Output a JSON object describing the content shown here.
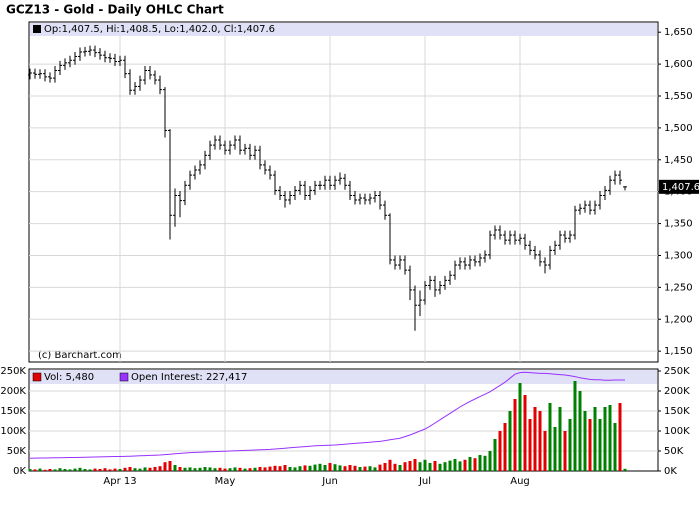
{
  "chart_data": {
    "type": "ohlc",
    "title": "GCZ13 - Gold - Daily OHLC Chart",
    "header_text": "Op:1,407.5, Hi:1,408.5, Lo:1,402.0, Cl:1,407.6",
    "watermark": "(c) Barchart.com",
    "last_label": "1,407.6",
    "grid": true,
    "color": "#000000",
    "categories": [
      null,
      null,
      null,
      null,
      null,
      null,
      null,
      null,
      null,
      null,
      null,
      null,
      null,
      null,
      null,
      null,
      null,
      null,
      "Apr 13",
      null,
      null,
      null,
      null,
      null,
      null,
      null,
      null,
      null,
      null,
      null,
      null,
      null,
      null,
      null,
      null,
      null,
      null,
      null,
      null,
      "May",
      null,
      null,
      null,
      null,
      null,
      null,
      null,
      null,
      null,
      null,
      null,
      null,
      null,
      null,
      null,
      null,
      null,
      null,
      null,
      null,
      "Jun",
      null,
      null,
      null,
      null,
      null,
      null,
      null,
      null,
      null,
      null,
      null,
      null,
      null,
      null,
      null,
      null,
      null,
      null,
      "Jul",
      null,
      null,
      null,
      null,
      null,
      null,
      null,
      null,
      null,
      null,
      null,
      null,
      null,
      null,
      null,
      null,
      null,
      null,
      "Aug",
      null,
      null,
      null,
      null,
      null,
      null,
      null,
      null,
      null,
      null,
      null,
      null,
      null,
      null,
      null,
      null,
      null,
      null,
      null,
      null,
      null
    ],
    "open": [
      1583,
      1586,
      1584,
      1585,
      1580,
      1578,
      1590,
      1598,
      1602,
      1606,
      1612,
      1619,
      1620,
      1622,
      1618,
      1614,
      1610,
      1609,
      1604,
      1606,
      1585,
      1559,
      1565,
      1575,
      1590,
      1583,
      1575,
      1560,
      1496,
      1363,
      1394,
      1386,
      1410,
      1426,
      1434,
      1442,
      1457,
      1473,
      1481,
      1473,
      1465,
      1473,
      1481,
      1465,
      1468,
      1457,
      1465,
      1442,
      1434,
      1426,
      1402,
      1394,
      1387,
      1394,
      1402,
      1410,
      1394,
      1402,
      1410,
      1410,
      1418,
      1410,
      1418,
      1421,
      1410,
      1394,
      1387,
      1390,
      1387,
      1390,
      1394,
      1379,
      1363,
      1293,
      1285,
      1293,
      1277,
      1246,
      1222,
      1230,
      1253,
      1261,
      1246,
      1253,
      1261,
      1269,
      1285,
      1290,
      1285,
      1293,
      1290,
      1296,
      1301,
      1332,
      1340,
      1332,
      1324,
      1332,
      1324,
      1327,
      1316,
      1308,
      1301,
      1290,
      1285,
      1308,
      1316,
      1332,
      1327,
      1332,
      1371,
      1374,
      1379,
      1371,
      1379,
      1394,
      1402,
      1418,
      1426,
      1407.5
    ],
    "high": [
      1593,
      1593,
      1592,
      1592,
      1587,
      1597,
      1605,
      1609,
      1613,
      1619,
      1626,
      1627,
      1629,
      1629,
      1625,
      1621,
      1617,
      1616,
      1613,
      1613,
      1592,
      1572,
      1582,
      1597,
      1597,
      1590,
      1582,
      1564,
      1498,
      1405,
      1401,
      1417,
      1433,
      1441,
      1449,
      1464,
      1480,
      1488,
      1488,
      1480,
      1480,
      1488,
      1488,
      1475,
      1475,
      1472,
      1472,
      1449,
      1441,
      1433,
      1409,
      1401,
      1401,
      1409,
      1417,
      1417,
      1409,
      1417,
      1417,
      1425,
      1425,
      1425,
      1430,
      1428,
      1417,
      1401,
      1397,
      1397,
      1397,
      1401,
      1401,
      1386,
      1366,
      1300,
      1300,
      1300,
      1284,
      1253,
      1245,
      1260,
      1268,
      1268,
      1260,
      1268,
      1276,
      1292,
      1297,
      1297,
      1300,
      1300,
      1303,
      1308,
      1339,
      1347,
      1347,
      1339,
      1339,
      1339,
      1334,
      1334,
      1323,
      1315,
      1308,
      1297,
      1315,
      1323,
      1339,
      1339,
      1339,
      1378,
      1381,
      1386,
      1386,
      1386,
      1401,
      1409,
      1425,
      1433,
      1433,
      1408.5
    ],
    "low": [
      1576,
      1577,
      1577,
      1573,
      1571,
      1571,
      1583,
      1591,
      1595,
      1599,
      1605,
      1612,
      1613,
      1611,
      1607,
      1603,
      1602,
      1597,
      1597,
      1578,
      1552,
      1552,
      1558,
      1568,
      1576,
      1568,
      1553,
      1485,
      1325,
      1345,
      1360,
      1379,
      1403,
      1419,
      1427,
      1435,
      1450,
      1466,
      1466,
      1458,
      1458,
      1466,
      1458,
      1458,
      1450,
      1450,
      1435,
      1427,
      1419,
      1395,
      1387,
      1375,
      1380,
      1387,
      1395,
      1387,
      1387,
      1395,
      1403,
      1403,
      1403,
      1403,
      1411,
      1403,
      1387,
      1380,
      1380,
      1380,
      1380,
      1383,
      1372,
      1356,
      1286,
      1278,
      1278,
      1270,
      1230,
      1182,
      1205,
      1223,
      1246,
      1235,
      1239,
      1246,
      1254,
      1262,
      1278,
      1278,
      1278,
      1283,
      1283,
      1289,
      1294,
      1325,
      1325,
      1317,
      1317,
      1317,
      1317,
      1309,
      1301,
      1294,
      1283,
      1272,
      1278,
      1301,
      1309,
      1320,
      1320,
      1325,
      1364,
      1367,
      1364,
      1364,
      1372,
      1387,
      1395,
      1411,
      1411,
      1402.0
    ],
    "close": [
      1586,
      1584,
      1585,
      1580,
      1578,
      1590,
      1598,
      1602,
      1606,
      1612,
      1619,
      1620,
      1622,
      1618,
      1614,
      1610,
      1609,
      1604,
      1606,
      1585,
      1559,
      1565,
      1575,
      1590,
      1583,
      1575,
      1560,
      1496,
      1363,
      1394,
      1386,
      1410,
      1426,
      1434,
      1442,
      1457,
      1473,
      1481,
      1473,
      1465,
      1473,
      1481,
      1465,
      1468,
      1457,
      1465,
      1442,
      1434,
      1426,
      1402,
      1394,
      1387,
      1394,
      1402,
      1410,
      1394,
      1402,
      1410,
      1410,
      1418,
      1410,
      1418,
      1421,
      1410,
      1394,
      1387,
      1390,
      1387,
      1390,
      1394,
      1379,
      1363,
      1293,
      1285,
      1293,
      1277,
      1246,
      1222,
      1230,
      1253,
      1261,
      1246,
      1253,
      1261,
      1269,
      1285,
      1290,
      1285,
      1293,
      1290,
      1296,
      1301,
      1332,
      1340,
      1332,
      1324,
      1332,
      1324,
      1327,
      1316,
      1308,
      1301,
      1290,
      1285,
      1308,
      1316,
      1332,
      1327,
      1332,
      1371,
      1374,
      1379,
      1371,
      1379,
      1394,
      1402,
      1418,
      1426,
      1418,
      1407.6
    ],
    "ylim": [
      1133,
      1666
    ],
    "yticks": [
      {
        "value": 1150,
        "label": "1,150"
      },
      {
        "value": 1200,
        "label": "1,200"
      },
      {
        "value": 1250,
        "label": "1,250"
      },
      {
        "value": 1300,
        "label": "1,300"
      },
      {
        "value": 1350,
        "label": "1,350"
      },
      {
        "value": 1400,
        "label": "1,400"
      },
      {
        "value": 1450,
        "label": "1,450"
      },
      {
        "value": 1500,
        "label": "1,500"
      },
      {
        "value": 1550,
        "label": "1,550"
      },
      {
        "value": 1600,
        "label": "1,600"
      },
      {
        "value": 1650,
        "label": "1,650"
      }
    ],
    "volume": {
      "type": "bar",
      "legend_text": "Vol: 5,480",
      "up_color": "#008000",
      "down_color": "#e00000",
      "values": [
        5000,
        4000,
        6000,
        3000,
        5000,
        4000,
        7000,
        5000,
        4000,
        6000,
        8000,
        5000,
        4000,
        6000,
        5000,
        7000,
        4000,
        6000,
        5000,
        8000,
        10000,
        7000,
        6000,
        9000,
        8000,
        10000,
        12000,
        22000,
        25000,
        15000,
        10000,
        8000,
        9000,
        7000,
        8000,
        10000,
        9000,
        7000,
        8000,
        6000,
        7000,
        9000,
        8000,
        6000,
        7000,
        8000,
        10000,
        9000,
        11000,
        13000,
        12000,
        15000,
        10000,
        9000,
        12000,
        14000,
        13000,
        16000,
        18000,
        15000,
        20000,
        17000,
        14000,
        12000,
        15000,
        13000,
        10000,
        11000,
        12000,
        9000,
        16000,
        20000,
        28000,
        18000,
        15000,
        22000,
        25000,
        30000,
        22000,
        28000,
        20000,
        25000,
        18000,
        22000,
        26000,
        30000,
        24000,
        28000,
        35000,
        32000,
        40000,
        38000,
        50000,
        80000,
        100000,
        120000,
        150000,
        180000,
        220000,
        190000,
        130000,
        160000,
        150000,
        100000,
        170000,
        110000,
        160000,
        100000,
        130000,
        225000,
        200000,
        150000,
        130000,
        160000,
        130000,
        160000,
        165000,
        120000,
        170000,
        5480
      ],
      "ylim": [
        0,
        250000
      ],
      "yticks": [
        {
          "value": 0,
          "label": "0K"
        },
        {
          "value": 50000,
          "label": "50K"
        },
        {
          "value": 100000,
          "label": "100K"
        },
        {
          "value": 150000,
          "label": "150K"
        },
        {
          "value": 200000,
          "label": "200K"
        },
        {
          "value": 250000,
          "label": "250K"
        }
      ]
    },
    "open_interest": {
      "type": "line",
      "legend_text": "Open Interest: 227,417",
      "color": "#9933ff",
      "values": [
        32000,
        32200,
        32400,
        32600,
        32800,
        33000,
        33200,
        33400,
        33600,
        33800,
        34000,
        34300,
        34600,
        34900,
        35200,
        35500,
        35800,
        36100,
        36400,
        36700,
        37000,
        37500,
        38000,
        38500,
        39000,
        39500,
        40000,
        41000,
        42000,
        43000,
        44000,
        45000,
        46000,
        46500,
        47000,
        47500,
        48000,
        48500,
        49000,
        49500,
        50000,
        50500,
        51000,
        51500,
        52000,
        52500,
        53000,
        53500,
        54000,
        55000,
        56000,
        57000,
        58000,
        59000,
        60000,
        61000,
        62000,
        63000,
        63500,
        64000,
        64500,
        65000,
        66000,
        67000,
        68000,
        69000,
        70000,
        71000,
        72000,
        73000,
        74000,
        76000,
        78000,
        80000,
        82000,
        86000,
        90000,
        95000,
        100000,
        105000,
        112000,
        120000,
        128000,
        136000,
        144000,
        152000,
        160000,
        167000,
        174000,
        180000,
        186000,
        192000,
        198000,
        206000,
        214000,
        222000,
        232000,
        242000,
        246000,
        247000,
        246000,
        245000,
        244000,
        244000,
        243000,
        242000,
        241000,
        240000,
        238000,
        236000,
        233000,
        231000,
        229000,
        228000,
        228000,
        227000,
        227000,
        227500,
        227400,
        227417
      ]
    }
  }
}
